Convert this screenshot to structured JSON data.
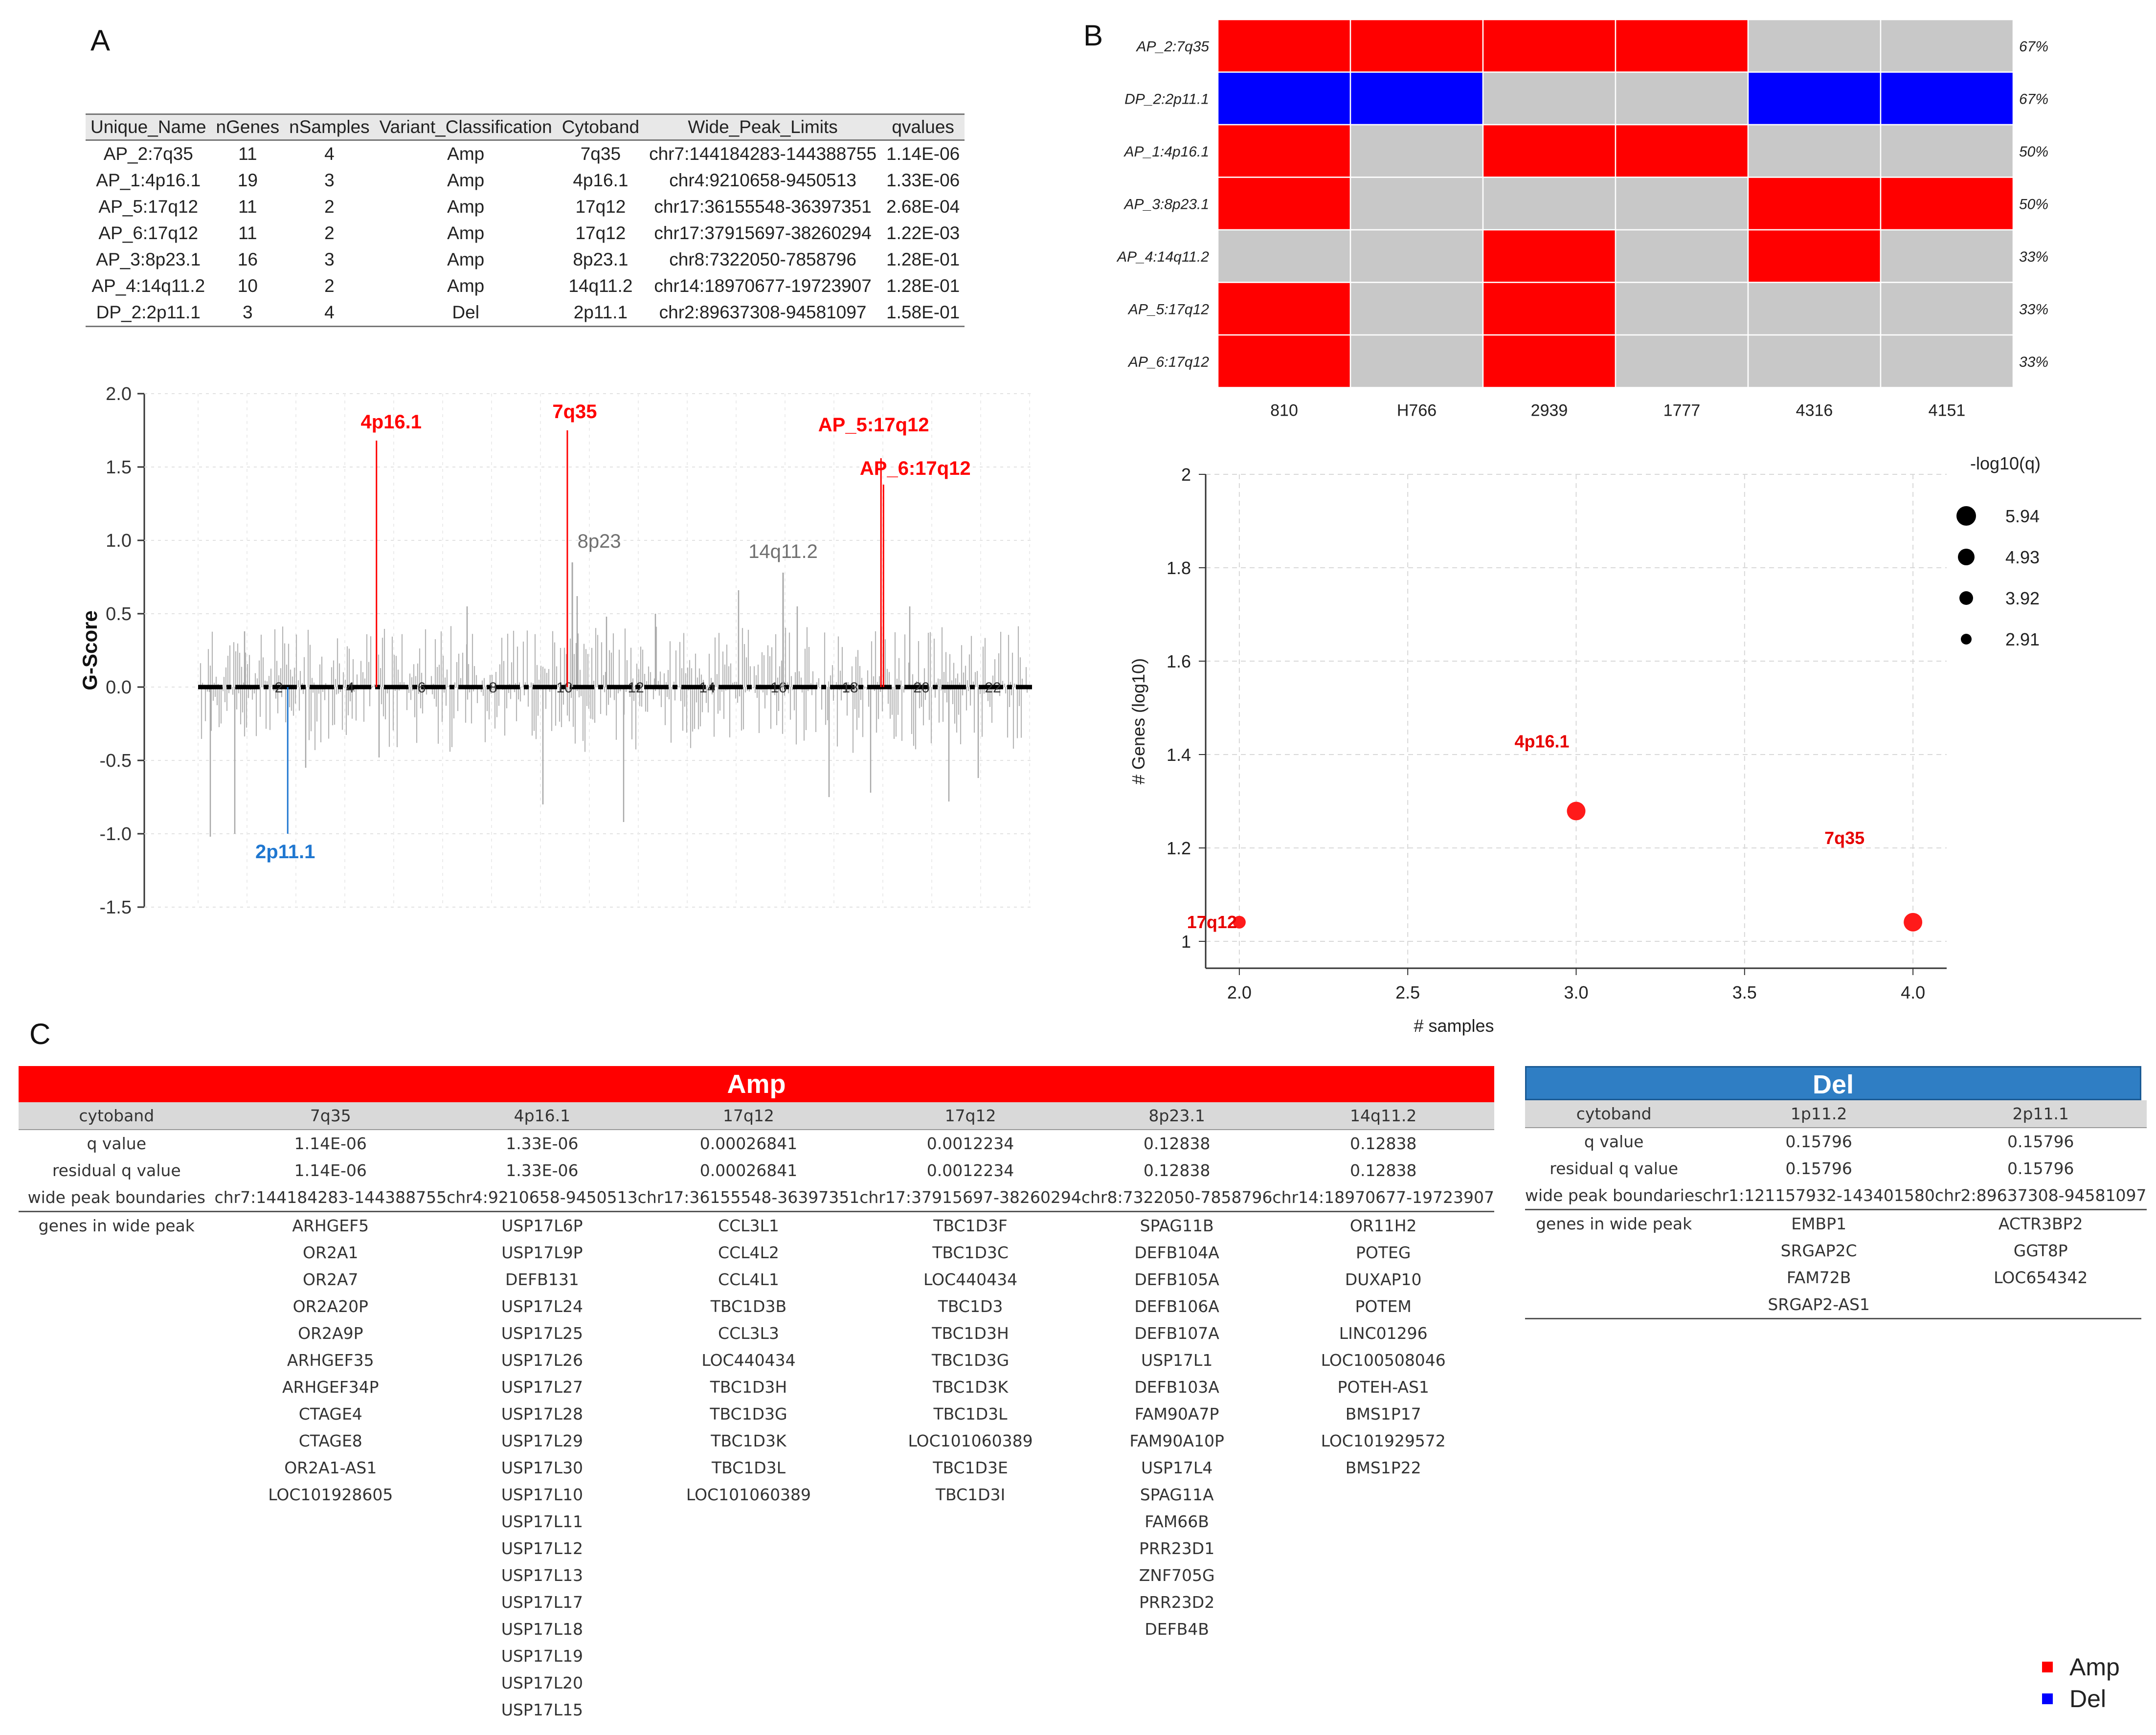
{
  "panels": {
    "a": "A",
    "b": "B",
    "c": "C"
  },
  "colors": {
    "amp": "#ff0000",
    "del": "#0000ff",
    "grey": "#c8c8c8",
    "text_del": "#1f77d0",
    "banner_del": "#2f7ec4"
  },
  "tableA": {
    "headers": [
      "Unique_Name",
      "nGenes",
      "nSamples",
      "Variant_Classification",
      "Cytoband",
      "Wide_Peak_Limits",
      "qvalues"
    ],
    "rows": [
      [
        "AP_2:7q35",
        "11",
        "4",
        "Amp",
        "7q35",
        "chr7:144184283-144388755",
        "1.14E-06"
      ],
      [
        "AP_1:4p16.1",
        "19",
        "3",
        "Amp",
        "4p16.1",
        "chr4:9210658-9450513",
        "1.33E-06"
      ],
      [
        "AP_5:17q12",
        "11",
        "2",
        "Amp",
        "17q12",
        "chr17:36155548-36397351",
        "2.68E-04"
      ],
      [
        "AP_6:17q12",
        "11",
        "2",
        "Amp",
        "17q12",
        "chr17:37915697-38260294",
        "1.22E-03"
      ],
      [
        "AP_3:8p23.1",
        "16",
        "3",
        "Amp",
        "8p23.1",
        "chr8:7322050-7858796",
        "1.28E-01"
      ],
      [
        "AP_4:14q11.2",
        "10",
        "2",
        "Amp",
        "14q11.2",
        "chr14:18970677-19723907",
        "1.28E-01"
      ],
      [
        "DP_2:2p11.1",
        "3",
        "4",
        "Del",
        "2p11.1",
        "chr2:89637308-94581097",
        "1.58E-01"
      ]
    ]
  },
  "chart_data": [
    {
      "type": "bar",
      "name": "gistic-genome-plot",
      "ylabel": "G-Score",
      "ylim": [
        -1.5,
        2.0
      ],
      "yticks": [
        "2.0",
        "1.5",
        "1.0",
        "0.5",
        "0.0",
        "-0.5",
        "-1.0",
        "-1.5"
      ],
      "chromosome_labels": [
        "2",
        "4",
        "6",
        "8",
        "10",
        "12",
        "14",
        "16",
        "18",
        "20",
        "22",
        "Y"
      ],
      "peaks": [
        {
          "label": "4p16.1",
          "position": 0.215,
          "value": 1.68,
          "kind": "amp"
        },
        {
          "label": "7q35",
          "position": 0.445,
          "value": 1.75,
          "kind": "amp"
        },
        {
          "label": "8p23",
          "position": 0.451,
          "value": 0.85,
          "kind": "grey"
        },
        {
          "label": "14q11.2",
          "position": 0.705,
          "value": 0.78,
          "kind": "grey"
        },
        {
          "label": "AP_5:17q12",
          "position": 0.823,
          "value": 1.56,
          "kind": "amp"
        },
        {
          "label": "AP_6:17q12",
          "position": 0.826,
          "value": 1.38,
          "kind": "amp"
        },
        {
          "label": "2p11.1",
          "position": 0.108,
          "value": -1.0,
          "kind": "del"
        }
      ]
    },
    {
      "type": "heatmap",
      "name": "oncoplot",
      "rows": [
        "AP_2:7q35",
        "DP_2:2p11.1",
        "AP_1:4p16.1",
        "AP_3:8p23.1",
        "AP_4:14q11.2",
        "AP_5:17q12",
        "AP_6:17q12"
      ],
      "columns": [
        "810",
        "H766",
        "2939",
        "1777",
        "4316",
        "4151"
      ],
      "percentages": [
        "67%",
        "67%",
        "50%",
        "50%",
        "33%",
        "33%",
        "33%"
      ],
      "values": [
        [
          "Amp",
          "Amp",
          "Amp",
          "Amp",
          "",
          ""
        ],
        [
          "Del",
          "Del",
          "",
          "",
          "Del",
          "Del"
        ],
        [
          "Amp",
          "",
          "Amp",
          "Amp",
          "",
          ""
        ],
        [
          "Amp",
          "",
          "",
          "",
          "Amp",
          "Amp"
        ],
        [
          "",
          "",
          "Amp",
          "",
          "Amp",
          ""
        ],
        [
          "Amp",
          "",
          "Amp",
          "",
          "",
          ""
        ],
        [
          "Amp",
          "",
          "Amp",
          "",
          "",
          ""
        ]
      ]
    },
    {
      "type": "scatter",
      "name": "bubble-plot",
      "xlabel": "# samples",
      "ylabel": "# Genes (log10)",
      "xlim": [
        1.9,
        4.1
      ],
      "ylim": [
        1.0,
        2.0
      ],
      "xticks": [
        "2.0",
        "2.5",
        "3.0",
        "3.5",
        "4.0"
      ],
      "yticks": [
        "2",
        "1.8",
        "1.6",
        "1.4",
        "1.2",
        "1"
      ],
      "legend_title": "-log10(q)",
      "legend": [
        {
          "label": "5.94",
          "r": 20
        },
        {
          "label": "4.93",
          "r": 17
        },
        {
          "label": "3.92",
          "r": 14
        },
        {
          "label": "2.91",
          "r": 11
        }
      ],
      "points": [
        {
          "x": 2.0,
          "y": 1.041,
          "label": "17q12",
          "size": "small"
        },
        {
          "x": 3.0,
          "y": 1.279,
          "label": "4p16.1",
          "size": "large"
        },
        {
          "x": 4.0,
          "y": 1.041,
          "label": "7q35",
          "size": "large"
        }
      ]
    }
  ],
  "amp": {
    "title": "Amp",
    "row_labels": [
      "cytoband",
      "q value",
      "residual q value",
      "wide peak boundaries",
      "genes in wide peak"
    ],
    "columns": [
      {
        "cytoband": "7q35",
        "q": "1.14E-06",
        "rq": "1.14E-06",
        "bounds": "chr7:144184283-144388755",
        "genes": [
          "ARHGEF5",
          "OR2A1",
          "OR2A7",
          "OR2A20P",
          "OR2A9P",
          "ARHGEF35",
          "ARHGEF34P",
          "CTAGE4",
          "CTAGE8",
          "OR2A1-AS1",
          "LOC101928605"
        ]
      },
      {
        "cytoband": "4p16.1",
        "q": "1.33E-06",
        "rq": "1.33E-06",
        "bounds": "chr4:9210658-9450513",
        "genes": [
          "USP17L6P",
          "USP17L9P",
          "DEFB131",
          "USP17L24",
          "USP17L25",
          "USP17L26",
          "USP17L27",
          "USP17L28",
          "USP17L29",
          "USP17L30",
          "USP17L10",
          "USP17L11",
          "USP17L12",
          "USP17L13",
          "USP17L17",
          "USP17L18",
          "USP17L19",
          "USP17L20",
          "USP17L15"
        ]
      },
      {
        "cytoband": "17q12",
        "q": "0.00026841",
        "rq": "0.00026841",
        "bounds": "chr17:36155548-36397351",
        "genes": [
          "CCL3L1",
          "CCL4L2",
          "CCL4L1",
          "TBC1D3B",
          "CCL3L3",
          "LOC440434",
          "TBC1D3H",
          "TBC1D3G",
          "TBC1D3K",
          "TBC1D3L",
          "LOC101060389"
        ]
      },
      {
        "cytoband": "17q12",
        "q": "0.0012234",
        "rq": "0.0012234",
        "bounds": "chr17:37915697-38260294",
        "genes": [
          "TBC1D3F",
          "TBC1D3C",
          "LOC440434",
          "TBC1D3",
          "TBC1D3H",
          "TBC1D3G",
          "TBC1D3K",
          "TBC1D3L",
          "LOC101060389",
          "TBC1D3E",
          "TBC1D3I"
        ]
      },
      {
        "cytoband": "8p23.1",
        "q": "0.12838",
        "rq": "0.12838",
        "bounds": "chr8:7322050-7858796",
        "genes": [
          "SPAG11B",
          "DEFB104A",
          "DEFB105A",
          "DEFB106A",
          "DEFB107A",
          "USP17L1",
          "DEFB103A",
          "FAM90A7P",
          "FAM90A10P",
          "USP17L4",
          "SPAG11A",
          "FAM66B",
          "PRR23D1",
          "ZNF705G",
          "PRR23D2",
          "DEFB4B"
        ]
      },
      {
        "cytoband": "14q11.2",
        "q": "0.12838",
        "rq": "0.12838",
        "bounds": "chr14:18970677-19723907",
        "genes": [
          "OR11H2",
          "POTEG",
          "DUXAP10",
          "POTEM",
          "LINC01296",
          "LOC100508046",
          "POTEH-AS1",
          "BMS1P17",
          "LOC101929572",
          "BMS1P22"
        ]
      }
    ]
  },
  "del": {
    "title": "Del",
    "row_labels": [
      "cytoband",
      "q value",
      "residual q value",
      "wide peak boundaries",
      "genes in wide peak"
    ],
    "columns": [
      {
        "cytoband": "1p11.2",
        "q": "0.15796",
        "rq": "0.15796",
        "bounds": "chr1:121157932-143401580",
        "genes": [
          "EMBP1",
          "SRGAP2C",
          "FAM72B",
          "SRGAP2-AS1"
        ]
      },
      {
        "cytoband": "2p11.1",
        "q": "0.15796",
        "rq": "0.15796",
        "bounds": "chr2:89637308-94581097",
        "genes": [
          "ACTR3BP2",
          "GGT8P",
          "LOC654342"
        ]
      }
    ]
  },
  "legend": [
    {
      "label": "Amp",
      "color": "#ff0000"
    },
    {
      "label": "Del",
      "color": "#0000ff"
    }
  ]
}
